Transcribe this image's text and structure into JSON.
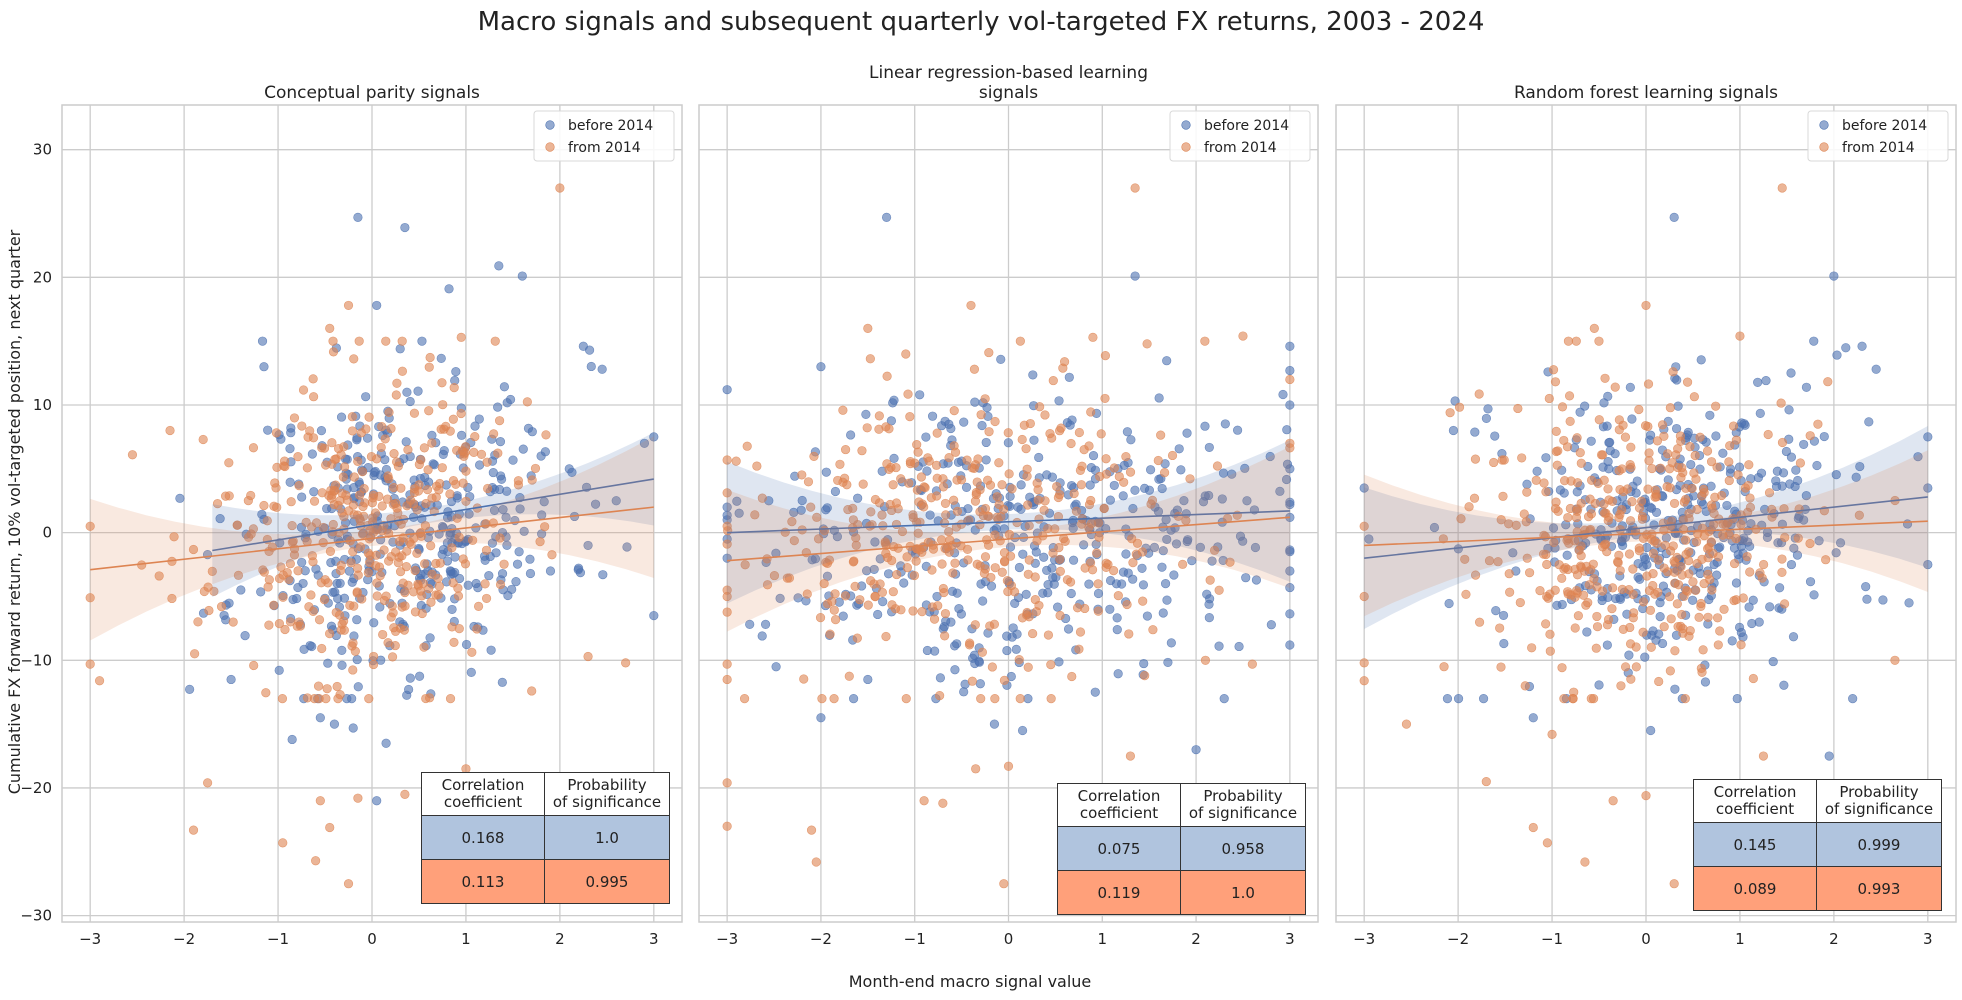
{
  "figure": {
    "title": "Macro signals and subsequent quarterly vol-targeted FX returns, 2003 - 2024",
    "xlabel": "Month-end macro signal value",
    "ylabel": "Cumulative FX forward return, 10% vol-targeted position, next quarter"
  },
  "colors": {
    "before": "#4c72b0",
    "from": "#dd8452",
    "grid": "#cccccc",
    "table_row_before": "#b0c4de",
    "table_row_from": "#ffa07a"
  },
  "chart_data": [
    {
      "type": "scatter",
      "title": "Conceptual parity signals",
      "xlim": [
        -3.3,
        3.3
      ],
      "ylim": [
        -30.5,
        33.5
      ],
      "xticks": [
        -3,
        -2,
        -1,
        0,
        1,
        2,
        3
      ],
      "yticks": [
        -30,
        -20,
        -10,
        0,
        10,
        20,
        30
      ],
      "grid": true,
      "legend_position": "top-right",
      "series": [
        {
          "name": "before 2014",
          "regression": {
            "x": [
              -1.7,
              3.0
            ],
            "y": [
              -1.4,
              4.2
            ]
          },
          "points": [
            [
              -0.15,
              24.7
            ],
            [
              0.35,
              23.9
            ],
            [
              1.35,
              20.9
            ],
            [
              1.6,
              20.1
            ],
            [
              0.82,
              19.1
            ],
            [
              0.05,
              17.8
            ],
            [
              2.25,
              14.6
            ],
            [
              2.45,
              12.8
            ],
            [
              0.3,
              14.4
            ],
            [
              -1.15,
              13.0
            ],
            [
              3.0,
              7.5
            ],
            [
              2.9,
              7.0
            ],
            [
              3.0,
              -6.5
            ],
            [
              2.6,
              2.5
            ],
            [
              -1.5,
              -11.5
            ],
            [
              -0.4,
              -15.0
            ],
            [
              -0.2,
              -15.3
            ],
            [
              0.15,
              -16.5
            ],
            [
              -0.85,
              -16.2
            ],
            [
              0.05,
              -21.0
            ],
            [
              -0.55,
              -14.5
            ],
            [
              1.8,
              6.0
            ],
            [
              2.1,
              5.0
            ],
            [
              1.9,
              -3.0
            ],
            [
              2.3,
              -1.0
            ]
          ],
          "fill": {
            "n": 380,
            "xmean": 0.35,
            "xsd": 0.85,
            "slope": 1.2,
            "sd": 5.8,
            "seed": 11
          }
        },
        {
          "name": "from 2014",
          "regression": {
            "x": [
              -3.0,
              3.0
            ],
            "y": [
              -2.9,
              2.0
            ]
          },
          "points": [
            [
              2.0,
              27.0
            ],
            [
              -0.25,
              17.8
            ],
            [
              -0.45,
              16.0
            ],
            [
              0.95,
              15.3
            ],
            [
              -3.0,
              0.5
            ],
            [
              -3.0,
              -5.1
            ],
            [
              -3.0,
              -10.3
            ],
            [
              -2.9,
              -11.6
            ],
            [
              -2.55,
              6.1
            ],
            [
              -2.15,
              8.0
            ],
            [
              -1.75,
              -19.6
            ],
            [
              -1.9,
              -23.3
            ],
            [
              -0.95,
              -24.3
            ],
            [
              -0.55,
              -21.0
            ],
            [
              -0.6,
              -25.7
            ],
            [
              -0.25,
              -27.5
            ],
            [
              -0.45,
              -23.1
            ],
            [
              1.7,
              -12.4
            ],
            [
              2.3,
              -9.7
            ],
            [
              2.7,
              -10.2
            ],
            [
              0.35,
              -20.5
            ],
            [
              1.0,
              -18.5
            ],
            [
              -0.15,
              -20.8
            ]
          ],
          "fill": {
            "n": 400,
            "xmean": -0.1,
            "xsd": 0.8,
            "slope": 0.8,
            "sd": 6.0,
            "seed": 23
          }
        }
      ],
      "stats_table": {
        "headers": [
          "Correlation\ncoefficient",
          "Probability\nof significance"
        ],
        "rows": [
          [
            "0.168",
            "1.0"
          ],
          [
            "0.113",
            "0.995"
          ]
        ]
      }
    },
    {
      "type": "scatter",
      "title": "Linear regression-based learning\nsignals",
      "xlim": [
        -3.3,
        3.3
      ],
      "ylim": [
        -30.5,
        33.5
      ],
      "xticks": [
        -3,
        -2,
        -1,
        0,
        1,
        2,
        3
      ],
      "yticks": [
        -30,
        -20,
        -10,
        0,
        10,
        20,
        30
      ],
      "grid": true,
      "legend_position": "top-right",
      "series": [
        {
          "name": "before 2014",
          "regression": {
            "x": [
              -3.0,
              3.0
            ],
            "y": [
              0.0,
              1.7
            ]
          },
          "points": [
            [
              -1.3,
              24.7
            ],
            [
              1.35,
              20.1
            ],
            [
              -3.0,
              11.2
            ],
            [
              -3.0,
              -0.5
            ],
            [
              -3.0,
              1.0
            ],
            [
              -3.0,
              2.0
            ],
            [
              -3.0,
              -2.0
            ],
            [
              3.0,
              14.6
            ],
            [
              3.0,
              12.7
            ],
            [
              3.0,
              -8.8
            ],
            [
              3.0,
              10.0
            ],
            [
              3.0,
              5.0
            ],
            [
              3.0,
              -3.0
            ],
            [
              2.0,
              -17.0
            ],
            [
              2.3,
              -13.0
            ],
            [
              -0.15,
              -15.0
            ],
            [
              0.15,
              -15.5
            ],
            [
              -1.5,
              -11.5
            ],
            [
              -2.0,
              -14.5
            ],
            [
              -2.0,
              13.0
            ]
          ],
          "fill": {
            "n": 390,
            "xmean": 0.2,
            "xsd": 1.3,
            "slope": 0.3,
            "sd": 5.6,
            "seed": 37
          }
        },
        {
          "name": "from 2014",
          "regression": {
            "x": [
              -3.0,
              3.0
            ],
            "y": [
              -2.2,
              1.2
            ]
          },
          "points": [
            [
              1.35,
              27.0
            ],
            [
              -0.4,
              17.8
            ],
            [
              -1.5,
              16.0
            ],
            [
              0.9,
              15.3
            ],
            [
              2.5,
              15.4
            ],
            [
              -3.0,
              -19.6
            ],
            [
              -3.0,
              -23.0
            ],
            [
              -3.0,
              -11.5
            ],
            [
              -3.0,
              -10.3
            ],
            [
              -3.0,
              0.5
            ],
            [
              -3.0,
              -5.0
            ],
            [
              -2.1,
              -23.3
            ],
            [
              -2.05,
              -25.8
            ],
            [
              -0.05,
              -27.5
            ],
            [
              -0.9,
              -21.0
            ],
            [
              -0.7,
              -21.2
            ],
            [
              -0.35,
              -18.5
            ],
            [
              2.1,
              -10.0
            ],
            [
              2.6,
              -10.3
            ],
            [
              1.3,
              -17.5
            ],
            [
              0.0,
              -18.3
            ],
            [
              3.0,
              12.0
            ],
            [
              3.0,
              7.0
            ]
          ],
          "fill": {
            "n": 400,
            "xmean": -0.3,
            "xsd": 1.3,
            "slope": 0.5,
            "sd": 5.8,
            "seed": 53
          }
        }
      ],
      "stats_table": {
        "headers": [
          "Correlation\ncoefficient",
          "Probability\nof significance"
        ],
        "rows": [
          [
            "0.075",
            "0.958"
          ],
          [
            "0.119",
            "1.0"
          ]
        ]
      }
    },
    {
      "type": "scatter",
      "title": "Random forest learning signals",
      "xlim": [
        -3.3,
        3.3
      ],
      "ylim": [
        -30.5,
        33.5
      ],
      "xticks": [
        -3,
        -2,
        -1,
        0,
        1,
        2,
        3
      ],
      "yticks": [
        -30,
        -20,
        -10,
        0,
        10,
        20,
        30
      ],
      "grid": true,
      "legend_position": "top-right",
      "series": [
        {
          "name": "before 2014",
          "regression": {
            "x": [
              -3.0,
              3.0
            ],
            "y": [
              -2.0,
              2.8
            ]
          },
          "points": [
            [
              0.3,
              24.7
            ],
            [
              2.0,
              20.1
            ],
            [
              2.3,
              14.6
            ],
            [
              2.45,
              12.8
            ],
            [
              3.0,
              7.5
            ],
            [
              3.0,
              3.5
            ],
            [
              3.0,
              -2.5
            ],
            [
              2.8,
              -5.5
            ],
            [
              -3.0,
              3.5
            ],
            [
              -2.95,
              -0.5
            ],
            [
              2.2,
              -13.0
            ],
            [
              1.95,
              -17.5
            ],
            [
              0.05,
              -15.5
            ],
            [
              -1.2,
              -14.5
            ],
            [
              -2.05,
              8.0
            ]
          ],
          "fill": {
            "n": 380,
            "xmean": 0.3,
            "xsd": 0.95,
            "slope": 0.8,
            "sd": 5.7,
            "seed": 71
          }
        },
        {
          "name": "from 2014",
          "regression": {
            "x": [
              -3.0,
              3.0
            ],
            "y": [
              -1.0,
              0.9
            ]
          },
          "points": [
            [
              1.45,
              27.0
            ],
            [
              0.0,
              17.8
            ],
            [
              -0.55,
              16.0
            ],
            [
              1.0,
              15.4
            ],
            [
              -3.0,
              0.5
            ],
            [
              -3.0,
              -5.0
            ],
            [
              -3.0,
              -10.2
            ],
            [
              -3.0,
              -11.6
            ],
            [
              -1.7,
              -19.5
            ],
            [
              -1.2,
              -23.1
            ],
            [
              -1.05,
              -24.3
            ],
            [
              -0.65,
              -25.8
            ],
            [
              0.0,
              -20.6
            ],
            [
              0.3,
              -27.5
            ],
            [
              -0.35,
              -21.0
            ],
            [
              1.25,
              -17.5
            ],
            [
              2.65,
              -10.0
            ],
            [
              -1.0,
              -15.8
            ],
            [
              -2.55,
              -15.0
            ],
            [
              -2.15,
              -10.5
            ]
          ],
          "fill": {
            "n": 410,
            "xmean": -0.05,
            "xsd": 0.85,
            "slope": 0.3,
            "sd": 6.0,
            "seed": 89
          }
        }
      ],
      "stats_table": {
        "headers": [
          "Correlation\ncoefficient",
          "Probability\nof significance"
        ],
        "rows": [
          [
            "0.145",
            "0.999"
          ],
          [
            "0.089",
            "0.993"
          ]
        ]
      }
    }
  ]
}
